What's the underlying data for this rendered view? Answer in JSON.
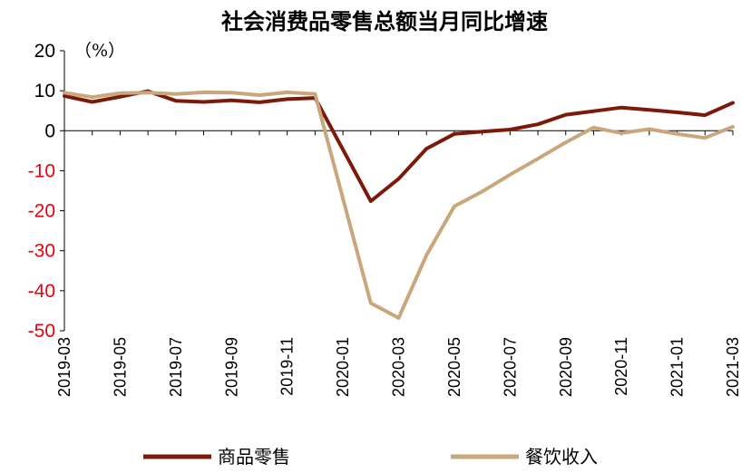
{
  "chart_data": {
    "type": "line",
    "title": "社会消费品零售总额当月同比增速",
    "unit_label": "（%）",
    "x": [
      "2019-03",
      "2019-04",
      "2019-05",
      "2019-06",
      "2019-07",
      "2019-08",
      "2019-09",
      "2019-10",
      "2019-11",
      "2019-12",
      "2020-01",
      "2020-02",
      "2020-03",
      "2020-04",
      "2020-05",
      "2020-06",
      "2020-07",
      "2020-08",
      "2020-09",
      "2020-10",
      "2020-11",
      "2020-12",
      "2021-01",
      "2021-02",
      "2021-03"
    ],
    "x_tick_labels": [
      "2019-03",
      "2019-05",
      "2019-07",
      "2019-09",
      "2019-11",
      "2020-01",
      "2020-03",
      "2020-05",
      "2020-07",
      "2020-09",
      "2020-11",
      "2021-01",
      "2021-03"
    ],
    "ylim": [
      -50,
      20
    ],
    "y_ticks": [
      20,
      10,
      0,
      -10,
      -20,
      -30,
      -40,
      -50
    ],
    "grid": false,
    "legend_position": "bottom",
    "series": [
      {
        "name": "商品零售",
        "color": "#7b1a08",
        "values": [
          8.7,
          7.2,
          8.5,
          9.9,
          7.5,
          7.2,
          7.6,
          7.1,
          7.9,
          8.2,
          null,
          -17.6,
          -12.0,
          -4.5,
          -0.8,
          -0.2,
          0.3,
          1.6,
          4.0,
          4.9,
          5.8,
          5.2,
          4.6,
          3.9,
          7.0
        ]
      },
      {
        "name": "餐饮收入",
        "color": "#c9a67b",
        "values": [
          9.5,
          8.4,
          9.4,
          9.5,
          9.2,
          9.6,
          9.5,
          8.9,
          9.6,
          9.2,
          null,
          -43.1,
          -46.8,
          -31.1,
          -18.9,
          -15.2,
          -11.0,
          -7.0,
          -2.9,
          0.8,
          -0.6,
          0.4,
          -0.8,
          -1.8,
          1.0
        ]
      }
    ]
  },
  "colors": {
    "positive_tick": "#000000",
    "negative_tick": "#e8000b",
    "axis": "#000000"
  }
}
